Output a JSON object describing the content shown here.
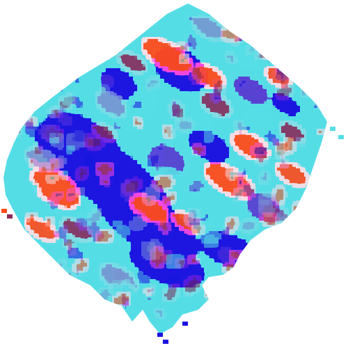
{
  "image": {
    "description_type": "pixelated spatial heat map",
    "background": "#ffffff",
    "palette": {
      "deep_blue": "#1a12e0",
      "violet": "#5a3ad0",
      "cyan": "#55dde6",
      "slate": "#7a8fd0",
      "orange": "#ff4a1a",
      "maroon": "#8a2a5a"
    },
    "blob_seed": 17
  }
}
